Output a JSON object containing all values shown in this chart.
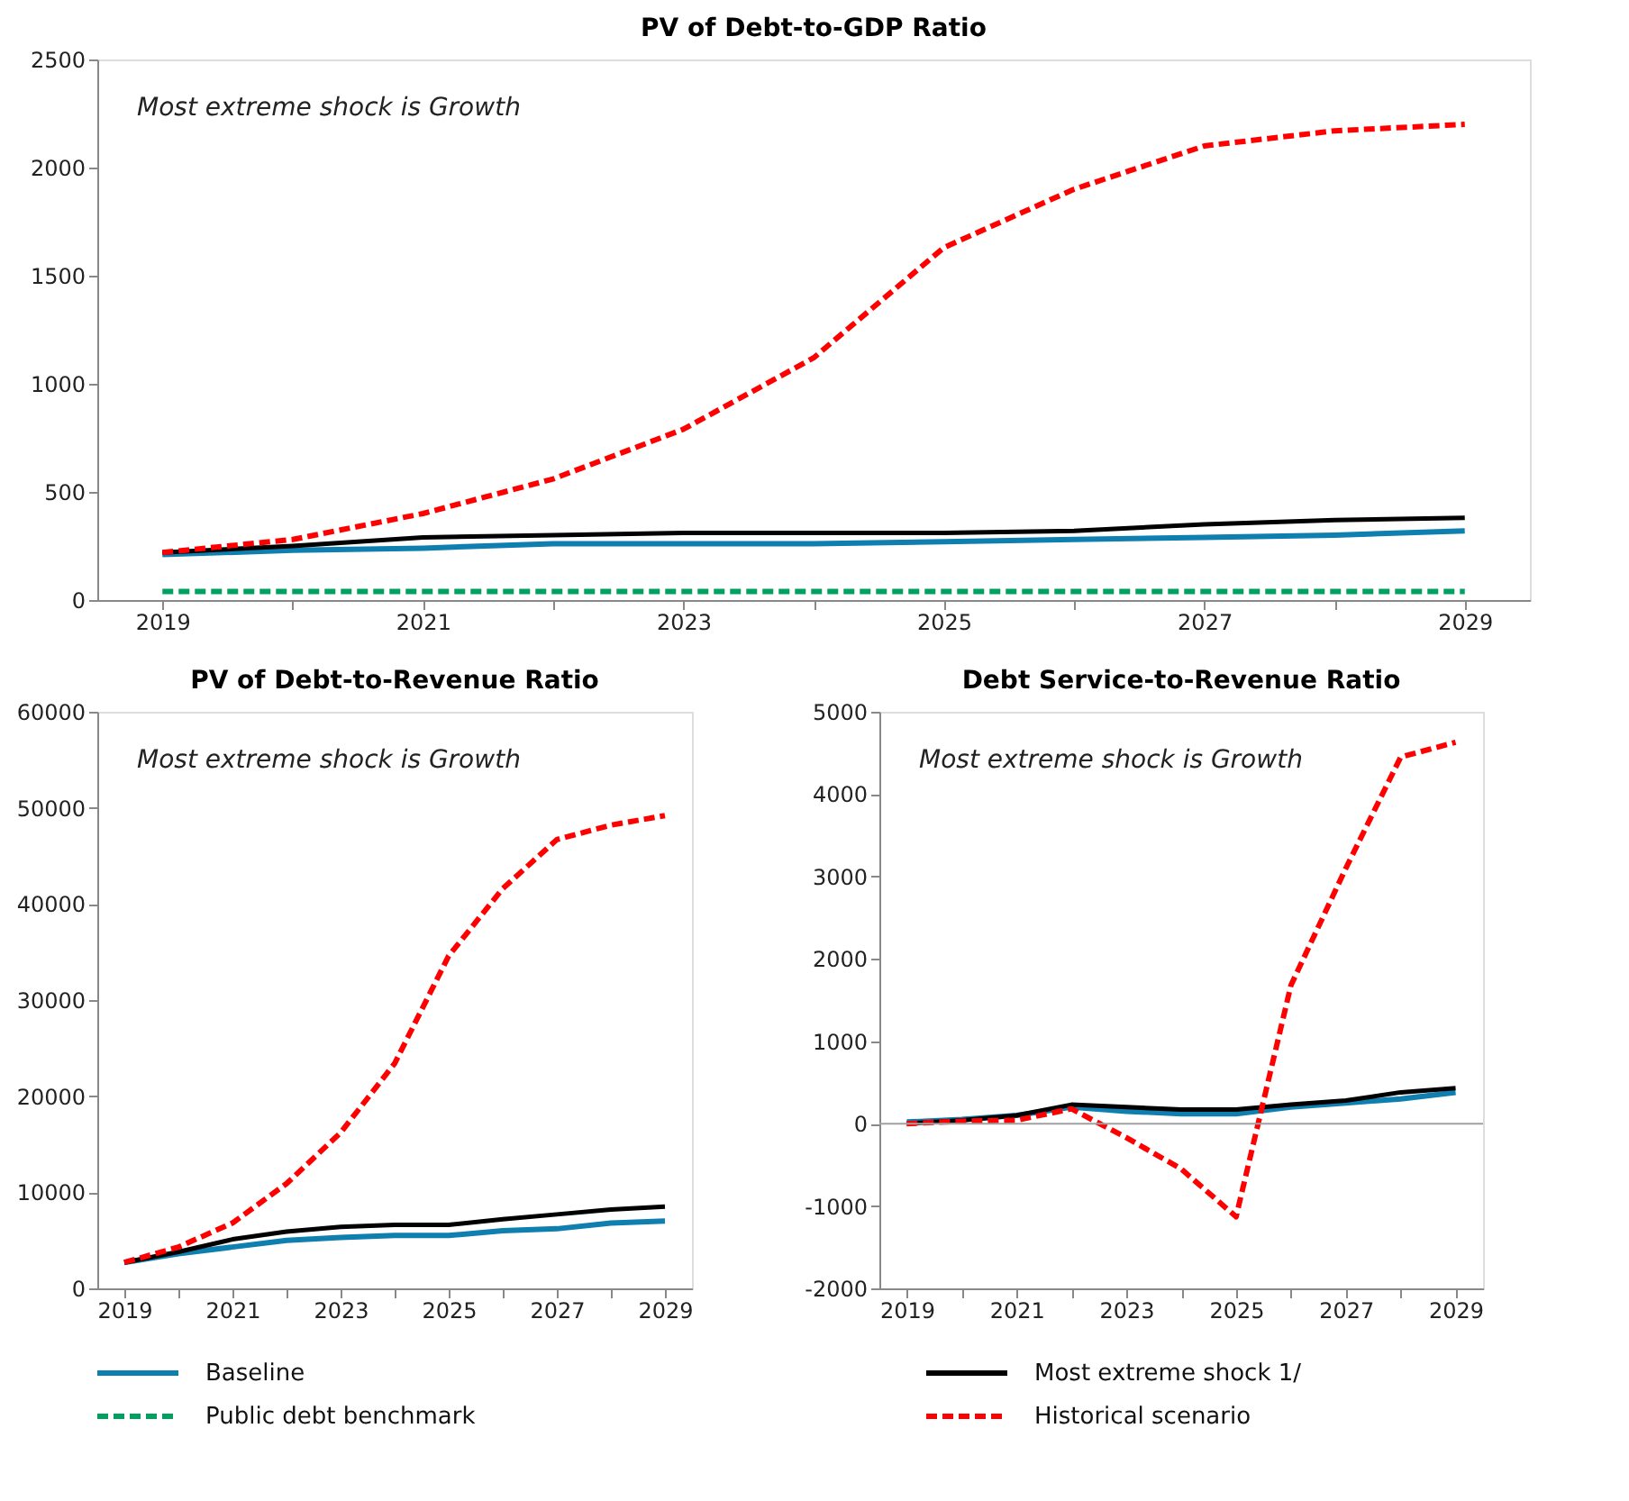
{
  "chart_data": [
    {
      "type": "line",
      "title": "PV of Debt-to-GDP  Ratio",
      "annotations": [
        "Most extreme  shock is Growth"
      ],
      "x": [
        2019,
        2020,
        2021,
        2022,
        2023,
        2024,
        2025,
        2026,
        2027,
        2028,
        2029
      ],
      "xlim": [
        2018.5,
        2029.5
      ],
      "xticks": [
        2019,
        {
          "value": 2020,
          "label": null
        },
        2021,
        {
          "value": 2022,
          "label": null
        },
        2023,
        {
          "value": 2024,
          "label": null
        },
        2025,
        {
          "value": 2026,
          "label": null
        },
        2027,
        {
          "value": 2028,
          "label": null
        },
        2029
      ],
      "ylim": [
        0,
        2500
      ],
      "yticks": [
        0,
        500,
        1000,
        1500,
        2000,
        2500
      ],
      "grid": false,
      "legend": "bottom",
      "series": [
        {
          "name": "Baseline",
          "color": "#0f7fb0",
          "line_style": "solid",
          "values": [
            210,
            230,
            240,
            260,
            260,
            260,
            270,
            280,
            290,
            300,
            320
          ]
        },
        {
          "name": "Most extreme shock 1/",
          "color": "#000000",
          "line_style": "solid",
          "values": [
            220,
            250,
            290,
            300,
            310,
            310,
            310,
            320,
            350,
            370,
            380
          ]
        },
        {
          "name": "Public debt benchmark",
          "color": "#00a060",
          "line_style": "dashed",
          "values": [
            40,
            40,
            40,
            40,
            40,
            40,
            40,
            40,
            40,
            40,
            40
          ]
        },
        {
          "name": "Historical scenario",
          "color": "#ff0000",
          "line_style": "dashed",
          "values": [
            220,
            280,
            400,
            560,
            790,
            1120,
            1630,
            1900,
            2100,
            2170,
            2200
          ]
        }
      ]
    },
    {
      "type": "line",
      "title": "PV of Debt-to-Revenue  Ratio",
      "annotations": [
        "Most extreme  shock is Growth"
      ],
      "x": [
        2019,
        2020,
        2021,
        2022,
        2023,
        2024,
        2025,
        2026,
        2027,
        2028,
        2029
      ],
      "xlim": [
        2018.5,
        2029.5
      ],
      "xticks": [
        2019,
        {
          "value": 2020,
          "label": null
        },
        2021,
        {
          "value": 2022,
          "label": null
        },
        2023,
        {
          "value": 2024,
          "label": null
        },
        2025,
        {
          "value": 2026,
          "label": null
        },
        2027,
        {
          "value": 2028,
          "label": null
        },
        2029
      ],
      "ylim": [
        0,
        60000
      ],
      "yticks": [
        0,
        10000,
        20000,
        30000,
        40000,
        50000,
        60000
      ],
      "grid": false,
      "series": [
        {
          "name": "Baseline",
          "color": "#0f7fb0",
          "line_style": "solid",
          "values": [
            2700,
            3600,
            4300,
            5000,
            5300,
            5500,
            5500,
            6000,
            6200,
            6800,
            7000
          ]
        },
        {
          "name": "Most extreme shock 1/",
          "color": "#000000",
          "line_style": "solid",
          "values": [
            2700,
            3800,
            5100,
            5900,
            6400,
            6600,
            6600,
            7200,
            7700,
            8200,
            8500
          ]
        },
        {
          "name": "Historical scenario",
          "color": "#ff0000",
          "line_style": "dashed",
          "values": [
            2700,
            4300,
            6800,
            10900,
            16200,
            23400,
            34600,
            41600,
            46700,
            48200,
            49200
          ]
        }
      ]
    },
    {
      "type": "line",
      "title": "Debt Service-to-Revenue  Ratio",
      "annotations": [
        "Most extreme  shock is Growth"
      ],
      "x": [
        2019,
        2020,
        2021,
        2022,
        2023,
        2024,
        2025,
        2026,
        2027,
        2028,
        2029
      ],
      "xlim": [
        2018.5,
        2029.5
      ],
      "xticks": [
        2019,
        {
          "value": 2020,
          "label": null
        },
        2021,
        {
          "value": 2022,
          "label": null
        },
        2023,
        {
          "value": 2024,
          "label": null
        },
        2025,
        {
          "value": 2026,
          "label": null
        },
        2027,
        {
          "value": 2028,
          "label": null
        },
        2029
      ],
      "ylim": [
        -2000,
        5000
      ],
      "yticks": [
        -2000,
        -1000,
        0,
        1000,
        2000,
        3000,
        4000,
        5000
      ],
      "grid": false,
      "ref_lines": [
        {
          "axis": "y",
          "value": 0,
          "color": "#a0a0a0",
          "line_style": "solid"
        }
      ],
      "series": [
        {
          "name": "Baseline",
          "color": "#0f7fb0",
          "line_style": "solid",
          "values": [
            20,
            50,
            100,
            200,
            150,
            120,
            120,
            200,
            250,
            300,
            380
          ]
        },
        {
          "name": "Most extreme shock 1/",
          "color": "#000000",
          "line_style": "solid",
          "values": [
            0,
            40,
            100,
            230,
            200,
            170,
            170,
            230,
            280,
            380,
            430
          ]
        },
        {
          "name": "Historical scenario",
          "color": "#ff0000",
          "line_style": "dashed",
          "values": [
            0,
            30,
            40,
            180,
            -170,
            -550,
            -1130,
            1680,
            3100,
            4450,
            4630
          ]
        }
      ]
    }
  ]
}
